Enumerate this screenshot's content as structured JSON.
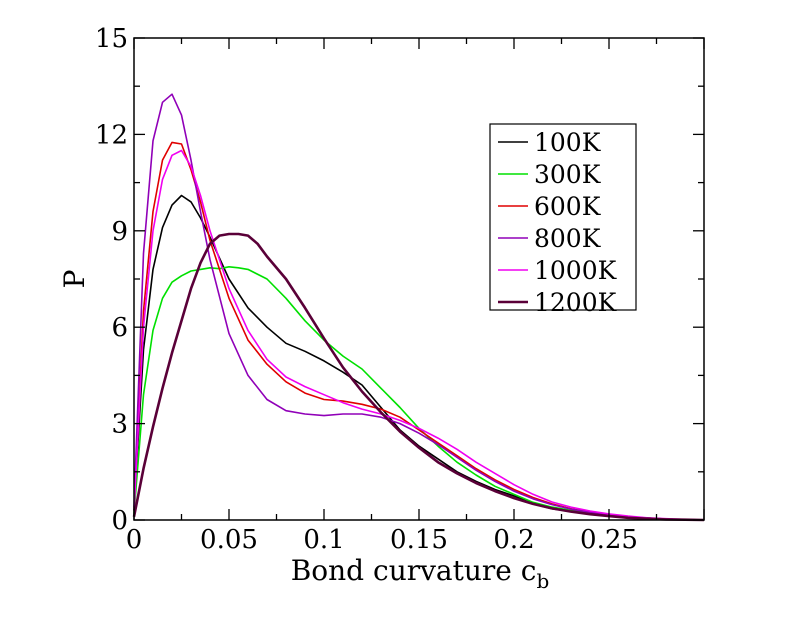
{
  "chart_data": {
    "type": "line",
    "xlabel": "Bond curvature c",
    "xlabel_subscript": "b",
    "ylabel": "P",
    "xlim": [
      0,
      0.3
    ],
    "ylim": [
      0,
      15
    ],
    "x_ticks": [
      {
        "value": 0,
        "label": "0"
      },
      {
        "value": 0.05,
        "label": "0.05"
      },
      {
        "value": 0.1,
        "label": "0.1"
      },
      {
        "value": 0.15,
        "label": "0.15"
      },
      {
        "value": 0.2,
        "label": "0.2"
      },
      {
        "value": 0.25,
        "label": "0.25"
      }
    ],
    "y_ticks": [
      {
        "value": 0,
        "label": "0"
      },
      {
        "value": 3,
        "label": "3"
      },
      {
        "value": 6,
        "label": "6"
      },
      {
        "value": 9,
        "label": "9"
      },
      {
        "value": 12,
        "label": "12"
      },
      {
        "value": 15,
        "label": "15"
      }
    ],
    "grid": false,
    "legend_position": "top-right",
    "series": [
      {
        "name": "100K",
        "color": "#000000",
        "x": [
          0,
          0.005,
          0.01,
          0.015,
          0.02,
          0.025,
          0.03,
          0.035,
          0.04,
          0.05,
          0.06,
          0.07,
          0.08,
          0.09,
          0.1,
          0.11,
          0.12,
          0.13,
          0.14,
          0.15,
          0.16,
          0.17,
          0.18,
          0.19,
          0.2,
          0.21,
          0.22,
          0.23,
          0.24,
          0.25,
          0.26,
          0.27,
          0.28,
          0.29,
          0.3
        ],
        "y": [
          0.3,
          5.3,
          7.8,
          9.1,
          9.8,
          10.1,
          9.9,
          9.4,
          8.8,
          7.5,
          6.6,
          6.0,
          5.5,
          5.25,
          4.95,
          4.6,
          4.2,
          3.5,
          2.8,
          2.3,
          1.9,
          1.5,
          1.2,
          0.95,
          0.75,
          0.5,
          0.35,
          0.27,
          0.2,
          0.14,
          0.1,
          0.06,
          0.03,
          0.01,
          0
        ]
      },
      {
        "name": "300K",
        "color": "#00e000",
        "x": [
          0,
          0.005,
          0.01,
          0.015,
          0.02,
          0.025,
          0.03,
          0.035,
          0.04,
          0.045,
          0.05,
          0.055,
          0.06,
          0.07,
          0.08,
          0.09,
          0.1,
          0.11,
          0.12,
          0.13,
          0.14,
          0.15,
          0.16,
          0.17,
          0.18,
          0.19,
          0.2,
          0.21,
          0.22,
          0.23,
          0.24,
          0.25,
          0.26,
          0.27,
          0.28,
          0.29,
          0.3
        ],
        "y": [
          0.2,
          3.9,
          5.9,
          6.9,
          7.4,
          7.6,
          7.75,
          7.8,
          7.85,
          7.82,
          7.88,
          7.85,
          7.8,
          7.5,
          6.9,
          6.2,
          5.6,
          5.1,
          4.7,
          4.1,
          3.5,
          2.85,
          2.3,
          1.8,
          1.4,
          1.05,
          0.8,
          0.55,
          0.4,
          0.3,
          0.22,
          0.15,
          0.1,
          0.06,
          0.03,
          0.01,
          0
        ]
      },
      {
        "name": "600K",
        "color": "#e00000",
        "x": [
          0,
          0.005,
          0.01,
          0.015,
          0.02,
          0.025,
          0.03,
          0.035,
          0.04,
          0.05,
          0.06,
          0.07,
          0.08,
          0.09,
          0.1,
          0.11,
          0.12,
          0.13,
          0.14,
          0.15,
          0.16,
          0.17,
          0.18,
          0.19,
          0.2,
          0.21,
          0.22,
          0.23,
          0.24,
          0.25,
          0.26,
          0.27,
          0.28,
          0.29,
          0.3
        ],
        "y": [
          0.3,
          6.5,
          9.6,
          11.2,
          11.75,
          11.7,
          10.9,
          9.9,
          8.7,
          6.9,
          5.6,
          4.85,
          4.3,
          3.95,
          3.75,
          3.7,
          3.6,
          3.45,
          3.2,
          2.8,
          2.4,
          2.0,
          1.6,
          1.25,
          0.95,
          0.7,
          0.5,
          0.35,
          0.25,
          0.17,
          0.1,
          0.06,
          0.03,
          0.01,
          0
        ]
      },
      {
        "name": "800K",
        "color": "#9000b8",
        "x": [
          0,
          0.005,
          0.01,
          0.015,
          0.02,
          0.025,
          0.03,
          0.035,
          0.04,
          0.05,
          0.06,
          0.07,
          0.08,
          0.09,
          0.1,
          0.11,
          0.12,
          0.13,
          0.14,
          0.15,
          0.16,
          0.17,
          0.18,
          0.19,
          0.2,
          0.21,
          0.22,
          0.23,
          0.24,
          0.25,
          0.26,
          0.27,
          0.28,
          0.29,
          0.3
        ],
        "y": [
          0.4,
          8.3,
          11.8,
          13.0,
          13.25,
          12.6,
          11.2,
          9.6,
          8.1,
          5.8,
          4.5,
          3.75,
          3.4,
          3.3,
          3.25,
          3.3,
          3.3,
          3.2,
          3.0,
          2.7,
          2.35,
          1.95,
          1.55,
          1.2,
          0.9,
          0.66,
          0.48,
          0.34,
          0.24,
          0.16,
          0.1,
          0.06,
          0.03,
          0.01,
          0
        ]
      },
      {
        "name": "1000K",
        "color": "#f000f0",
        "x": [
          0,
          0.005,
          0.01,
          0.015,
          0.02,
          0.025,
          0.03,
          0.035,
          0.04,
          0.05,
          0.06,
          0.07,
          0.08,
          0.09,
          0.1,
          0.11,
          0.12,
          0.13,
          0.14,
          0.15,
          0.16,
          0.17,
          0.18,
          0.19,
          0.2,
          0.21,
          0.22,
          0.23,
          0.24,
          0.25,
          0.26,
          0.27,
          0.28,
          0.29,
          0.3
        ],
        "y": [
          0.3,
          6.0,
          9.0,
          10.6,
          11.35,
          11.5,
          11.0,
          10.1,
          9.0,
          7.2,
          5.9,
          5.0,
          4.45,
          4.15,
          3.9,
          3.65,
          3.45,
          3.3,
          3.1,
          2.85,
          2.55,
          2.2,
          1.8,
          1.45,
          1.1,
          0.8,
          0.56,
          0.4,
          0.28,
          0.19,
          0.12,
          0.07,
          0.04,
          0.02,
          0
        ]
      },
      {
        "name": "1200K",
        "color": "#5a0038",
        "x": [
          0,
          0.005,
          0.01,
          0.015,
          0.02,
          0.025,
          0.03,
          0.035,
          0.04,
          0.045,
          0.05,
          0.055,
          0.06,
          0.065,
          0.07,
          0.08,
          0.09,
          0.1,
          0.11,
          0.12,
          0.13,
          0.14,
          0.15,
          0.16,
          0.17,
          0.18,
          0.19,
          0.2,
          0.21,
          0.22,
          0.23,
          0.24,
          0.25,
          0.26,
          0.27,
          0.28,
          0.29,
          0.3
        ],
        "y": [
          0.1,
          1.6,
          2.9,
          4.1,
          5.2,
          6.2,
          7.2,
          8.0,
          8.6,
          8.85,
          8.9,
          8.9,
          8.85,
          8.6,
          8.2,
          7.5,
          6.6,
          5.65,
          4.75,
          4.0,
          3.35,
          2.75,
          2.25,
          1.8,
          1.45,
          1.15,
          0.9,
          0.68,
          0.5,
          0.36,
          0.26,
          0.18,
          0.12,
          0.07,
          0.04,
          0.02,
          0.01,
          0
        ]
      }
    ]
  }
}
